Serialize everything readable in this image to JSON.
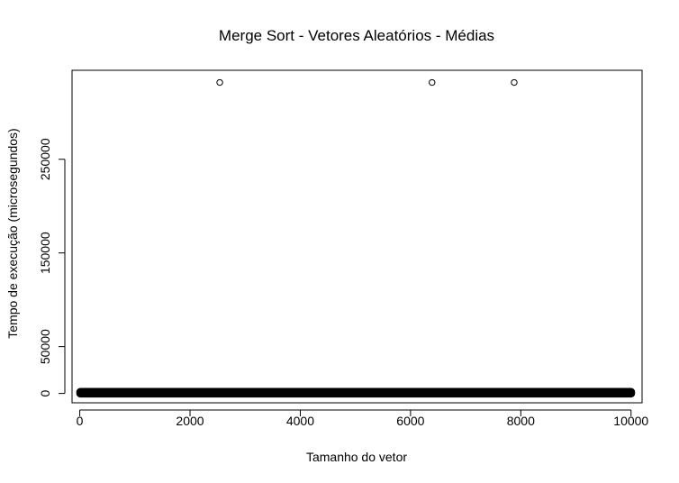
{
  "chart_data": {
    "type": "scatter",
    "title": "Merge Sort - Vetores Aleatórios - Médias",
    "xlabel": "Tamanho do vetor",
    "ylabel": "Tempo de execução (microsegundos)",
    "xlim": [
      -140,
      10200
    ],
    "ylim": [
      -10000,
      345000
    ],
    "xticks": [
      0,
      2000,
      4000,
      6000,
      8000,
      10000
    ],
    "xtick_labels": [
      "0",
      "2000",
      "4000",
      "6000",
      "8000",
      "10000"
    ],
    "yticks": [
      0,
      50000,
      150000,
      250000
    ],
    "ytick_labels": [
      "0",
      "50000",
      "150000",
      "250000"
    ],
    "grid": false,
    "legend": "none",
    "series": [
      {
        "points": [
          {
            "x": 2540,
            "y": 332000
          },
          {
            "x": 6390,
            "y": 332000
          },
          {
            "x": 7880,
            "y": 332000
          },
          {
            "x": 5520,
            "y": 1200
          },
          {
            "x": 6130,
            "y": 1500
          },
          {
            "x": 6320,
            "y": 1800
          },
          {
            "x": 6480,
            "y": 1800
          },
          {
            "x": 6700,
            "y": 1200
          },
          {
            "x": 6830,
            "y": 1000
          }
        ],
        "dense_band": {
          "x_start": 10,
          "x_end": 10000,
          "y_start": 0,
          "y_end": 1500
        }
      }
    ]
  }
}
